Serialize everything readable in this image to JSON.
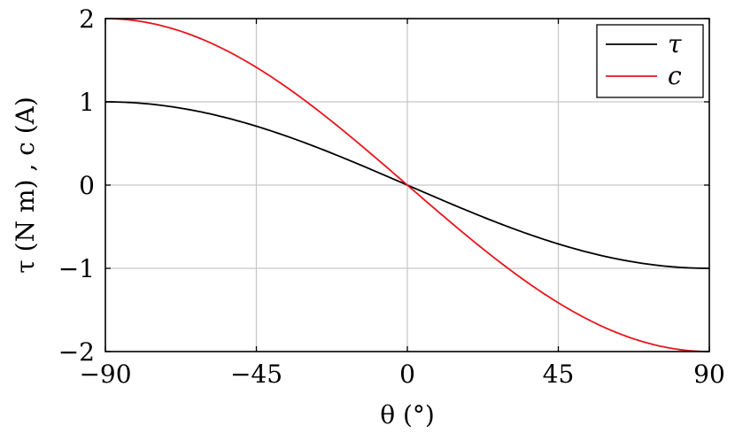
{
  "chart_data": {
    "type": "line",
    "title": "",
    "xlabel": "θ (°)",
    "ylabel": "τ (N m) , c (A)",
    "xlim": [
      -90,
      90
    ],
    "ylim": [
      -2,
      2
    ],
    "xticks": [
      -90,
      -45,
      0,
      45,
      90
    ],
    "xtick_labels": [
      "−90",
      "−45",
      "0",
      "45",
      "90"
    ],
    "yticks": [
      -2,
      -1,
      0,
      1,
      2
    ],
    "ytick_labels": [
      "−2",
      "−1",
      "0",
      "1",
      "2"
    ],
    "grid": true,
    "legend_position": "top-right",
    "series": [
      {
        "name": "τ",
        "color": "#000000",
        "x": [
          -90,
          -75,
          -60,
          -45,
          -30,
          -15,
          0,
          15,
          30,
          45,
          60,
          75,
          90
        ],
        "y": [
          1.0,
          0.966,
          0.866,
          0.707,
          0.5,
          0.259,
          0.0,
          -0.259,
          -0.5,
          -0.707,
          -0.866,
          -0.966,
          -1.0
        ]
      },
      {
        "name": "c",
        "color": "#e8141c",
        "x": [
          -90,
          -75,
          -60,
          -45,
          -30,
          -15,
          0,
          15,
          30,
          45,
          60,
          75,
          90
        ],
        "y": [
          2.0,
          1.932,
          1.732,
          1.414,
          1.0,
          0.518,
          0.0,
          -0.518,
          -1.0,
          -1.414,
          -1.732,
          -1.932,
          -2.0
        ]
      }
    ]
  }
}
